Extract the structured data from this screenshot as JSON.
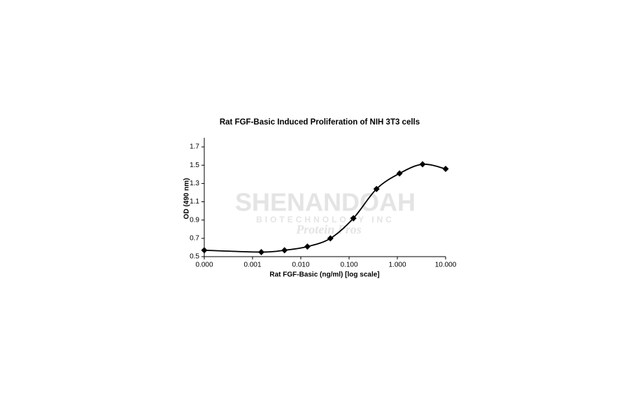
{
  "chart_data": {
    "type": "line",
    "title": "Rat FGF-Basic Induced Proliferation of NIH 3T3 cells",
    "x_label": "Rat FGF-Basic (ng/ml) [log scale]",
    "y_label": "OD (490 nm)",
    "x_scale": "log",
    "x": [
      0.0001,
      0.00152,
      0.0046,
      0.0137,
      0.041,
      0.123,
      0.37,
      1.11,
      3.33,
      10
    ],
    "series": [
      {
        "name": "OD",
        "color": "#000000",
        "values": [
          0.57,
          0.55,
          0.57,
          0.61,
          0.7,
          0.92,
          1.24,
          1.41,
          1.51,
          1.46
        ]
      }
    ],
    "xlim": [
      0.0001,
      10
    ],
    "xticks": [
      {
        "value": 0.0001,
        "label": "0.000"
      },
      {
        "value": 0.001,
        "label": "0.001"
      },
      {
        "value": 0.01,
        "label": "0.010"
      },
      {
        "value": 0.1,
        "label": "0.100"
      },
      {
        "value": 1,
        "label": "1.000"
      },
      {
        "value": 10,
        "label": "10.000"
      }
    ],
    "ylim": [
      0.5,
      1.8
    ],
    "yticks": [
      0.5,
      0.7,
      0.9,
      1.1,
      1.3,
      1.5,
      1.7
    ],
    "grid": false,
    "watermark": {
      "brand": "SHENANDOAH",
      "sub": "BIOTECHNOLOGY INC",
      "tagline": "Protein Pros"
    }
  }
}
